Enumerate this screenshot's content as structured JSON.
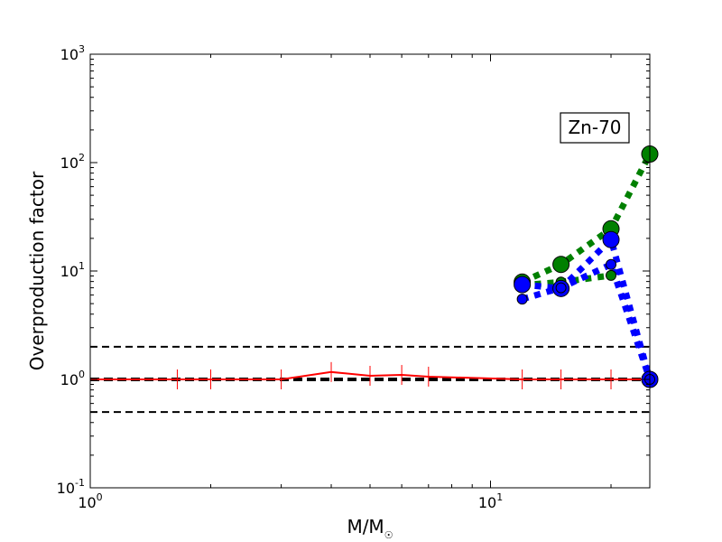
{
  "chart_data": {
    "type": "line",
    "xlabel": "M/M",
    "xlabel_sub": "☉",
    "ylabel": "Overproduction factor",
    "xscale": "log",
    "yscale": "log",
    "xlim": [
      1,
      25
    ],
    "ylim": [
      0.1,
      1000
    ],
    "xticks": [
      {
        "base": "10",
        "exp": "0",
        "value": 1
      },
      {
        "base": "10",
        "exp": "1",
        "value": 10
      }
    ],
    "yticks": [
      {
        "base": "10",
        "exp": "-1",
        "value": 0.1
      },
      {
        "base": "10",
        "exp": "0",
        "value": 1
      },
      {
        "base": "10",
        "exp": "1",
        "value": 10
      },
      {
        "base": "10",
        "exp": "2",
        "value": 100
      },
      {
        "base": "10",
        "exp": "3",
        "value": 1000
      }
    ],
    "annotation": "Zn-70",
    "reference_lines": [
      {
        "y": 2.0,
        "style": "dashed",
        "color": "#000000",
        "width": 2
      },
      {
        "y": 1.0,
        "style": "dashed",
        "color": "#000000",
        "width": 4
      },
      {
        "y": 0.5,
        "style": "dashed",
        "color": "#000000",
        "width": 2
      }
    ],
    "series": [
      {
        "color": "#ff0000",
        "style": "solid",
        "marker": "tick",
        "x": [
          1,
          1.65,
          2,
          3,
          4,
          5,
          6,
          7,
          12,
          15,
          20,
          25
        ],
        "y": [
          1.0,
          1.0,
          1.0,
          1.0,
          1.17,
          1.08,
          1.1,
          1.06,
          1.0,
          1.0,
          1.0,
          1.0
        ]
      },
      {
        "color": "#008000",
        "style": "dotted",
        "marker": "circle",
        "x": [
          12,
          15,
          20,
          25
        ],
        "y": [
          7.9,
          11.5,
          24.5,
          120
        ]
      },
      {
        "color": "#008000",
        "style": "dotted",
        "marker": "circle-small",
        "x": [
          12,
          15,
          20
        ],
        "y": [
          7.4,
          7.9,
          9.1
        ]
      },
      {
        "color": "#0000ff",
        "style": "dotted",
        "marker": "circle",
        "x": [
          12,
          15,
          20,
          25
        ],
        "y": [
          7.5,
          6.9,
          19.5,
          1.0
        ]
      },
      {
        "color": "#0000ff",
        "style": "dotted",
        "marker": "circle-small",
        "x": [
          12,
          15,
          20,
          25
        ],
        "y": [
          5.5,
          7.0,
          11.5,
          1.0
        ]
      }
    ]
  }
}
